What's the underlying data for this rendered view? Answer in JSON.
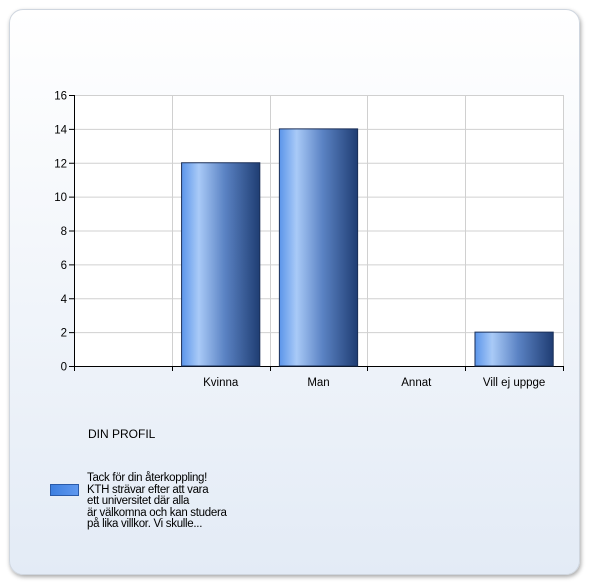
{
  "chart_data": {
    "type": "bar",
    "title": "DIN PROFIL",
    "categories": [
      "Kvinna",
      "Man",
      "Annat",
      "Vill ej uppge"
    ],
    "values": [
      12,
      14,
      0,
      2
    ],
    "ylim": [
      0,
      16
    ],
    "yticks": [
      0,
      2,
      4,
      6,
      8,
      10,
      12,
      14,
      16
    ],
    "grid": true,
    "legend_position": "bottom-left",
    "series": [
      {
        "name": "Tack för din återkoppling!\nKTH strävar efter att vara\nett universitet där alla\när välkomna och kan studera\npå lika villkor. Vi skulle...",
        "values": [
          12,
          14,
          0,
          2
        ],
        "color": "#4a86e8"
      }
    ]
  }
}
